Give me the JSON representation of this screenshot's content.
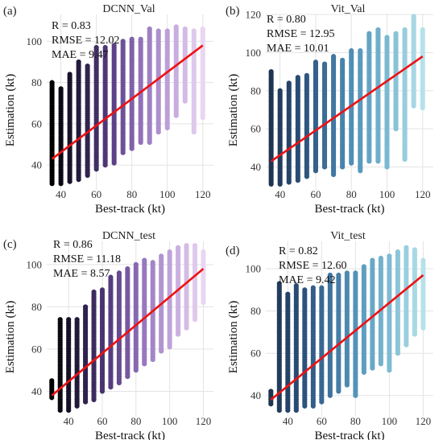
{
  "chart_data": [
    {
      "type": "scatter",
      "panel_label": "(a)",
      "title": "DCNN_Val",
      "xlabel": "Best-track (kt)",
      "ylabel": "Estimation (kt)",
      "xlim": [
        32,
        126
      ],
      "ylim": [
        28,
        113
      ],
      "xticks": [
        40,
        60,
        80,
        100,
        120
      ],
      "yticks": [
        40,
        60,
        80,
        100
      ],
      "grid": true,
      "stats": [
        "R = 0.83",
        "RMSE = 12.02",
        "MAE = 9.47"
      ],
      "colormap": [
        "#000000",
        "#2a1f45",
        "#5a3e85",
        "#9474bd",
        "#c4a8dc",
        "#e9d6f1"
      ],
      "fit_line": {
        "x": [
          35,
          120
        ],
        "y": [
          43,
          98
        ],
        "color": "#ee1111"
      },
      "columns": [
        {
          "x": 35,
          "ymin": 31,
          "ymax": 80
        },
        {
          "x": 40,
          "ymin": 31,
          "ymax": 77
        },
        {
          "x": 45,
          "ymin": 32,
          "ymax": 84
        },
        {
          "x": 50,
          "ymin": 33,
          "ymax": 90
        },
        {
          "x": 55,
          "ymin": 35,
          "ymax": 88
        },
        {
          "x": 60,
          "ymin": 38,
          "ymax": 97
        },
        {
          "x": 65,
          "ymin": 40,
          "ymax": 97
        },
        {
          "x": 70,
          "ymin": 41,
          "ymax": 98
        },
        {
          "x": 75,
          "ymin": 46,
          "ymax": 100
        },
        {
          "x": 80,
          "ymin": 48,
          "ymax": 101
        },
        {
          "x": 85,
          "ymin": 51,
          "ymax": 101
        },
        {
          "x": 90,
          "ymin": 51,
          "ymax": 106
        },
        {
          "x": 95,
          "ymin": 56,
          "ymax": 105
        },
        {
          "x": 100,
          "ymin": 58,
          "ymax": 105
        },
        {
          "x": 105,
          "ymin": 64,
          "ymax": 107
        },
        {
          "x": 110,
          "ymin": 71,
          "ymax": 106
        },
        {
          "x": 115,
          "ymin": 56,
          "ymax": 105
        },
        {
          "x": 120,
          "ymin": 63,
          "ymax": 106
        }
      ]
    },
    {
      "type": "scatter",
      "panel_label": "(b)",
      "title": "Vit_Val",
      "xlabel": "Best-track (kt)",
      "ylabel": "Estimation (kt)",
      "xlim": [
        32,
        126
      ],
      "ylim": [
        28,
        120
      ],
      "xticks": [
        40,
        60,
        80,
        100,
        120
      ],
      "yticks": [
        40,
        60,
        80,
        100,
        120
      ],
      "grid": true,
      "stats": [
        "R = 0.80",
        "RMSE = 12.95",
        "MAE = 10.01"
      ],
      "colormap": [
        "#1e3552",
        "#2a4f78",
        "#3f75a0",
        "#5b9cbf",
        "#82bfd5",
        "#b7e1ea"
      ],
      "fit_line": {
        "x": [
          35,
          120
        ],
        "y": [
          43,
          98
        ],
        "color": "#ee1111"
      },
      "columns": [
        {
          "x": 35,
          "ymin": 31,
          "ymax": 90
        },
        {
          "x": 40,
          "ymin": 31,
          "ymax": 80
        },
        {
          "x": 45,
          "ymin": 32,
          "ymax": 84
        },
        {
          "x": 50,
          "ymin": 33,
          "ymax": 87
        },
        {
          "x": 55,
          "ymin": 35,
          "ymax": 88
        },
        {
          "x": 60,
          "ymin": 38,
          "ymax": 95
        },
        {
          "x": 65,
          "ymin": 40,
          "ymax": 94
        },
        {
          "x": 70,
          "ymin": 36,
          "ymax": 98
        },
        {
          "x": 75,
          "ymin": 40,
          "ymax": 96
        },
        {
          "x": 80,
          "ymin": 42,
          "ymax": 101
        },
        {
          "x": 85,
          "ymin": 38,
          "ymax": 101
        },
        {
          "x": 90,
          "ymin": 43,
          "ymax": 110
        },
        {
          "x": 95,
          "ymin": 43,
          "ymax": 112
        },
        {
          "x": 100,
          "ymin": 40,
          "ymax": 108
        },
        {
          "x": 105,
          "ymin": 60,
          "ymax": 110
        },
        {
          "x": 110,
          "ymin": 44,
          "ymax": 112
        },
        {
          "x": 115,
          "ymin": 72,
          "ymax": 119
        },
        {
          "x": 120,
          "ymin": 71,
          "ymax": 112
        }
      ]
    },
    {
      "type": "scatter",
      "panel_label": "(c)",
      "title": "DCNN_test",
      "xlabel": "Best-track (kt)",
      "ylabel": "Estimation (kt)",
      "xlim": [
        27,
        126
      ],
      "ylim": [
        28,
        111
      ],
      "xticks": [
        40,
        60,
        80,
        100,
        120
      ],
      "yticks": [
        40,
        60,
        80,
        100
      ],
      "grid": true,
      "stats": [
        "R = 0.86",
        "RMSE = 11.18",
        "MAE = 8.57"
      ],
      "colormap": [
        "#000000",
        "#2a1f45",
        "#5a3e85",
        "#9474bd",
        "#c4a8dc",
        "#e9d6f1"
      ],
      "fit_line": {
        "x": [
          30,
          120
        ],
        "y": [
          38,
          98
        ],
        "color": "#ee1111"
      },
      "columns": [
        {
          "x": 30,
          "ymin": 37,
          "ymax": 45
        },
        {
          "x": 35,
          "ymin": 31,
          "ymax": 74
        },
        {
          "x": 40,
          "ymin": 31,
          "ymax": 74
        },
        {
          "x": 45,
          "ymin": 33,
          "ymax": 74
        },
        {
          "x": 50,
          "ymin": 35,
          "ymax": 80
        },
        {
          "x": 55,
          "ymin": 36,
          "ymax": 87
        },
        {
          "x": 60,
          "ymin": 40,
          "ymax": 88
        },
        {
          "x": 65,
          "ymin": 42,
          "ymax": 94
        },
        {
          "x": 70,
          "ymin": 44,
          "ymax": 96
        },
        {
          "x": 75,
          "ymin": 47,
          "ymax": 98
        },
        {
          "x": 80,
          "ymin": 50,
          "ymax": 100
        },
        {
          "x": 85,
          "ymin": 53,
          "ymax": 102
        },
        {
          "x": 90,
          "ymin": 55,
          "ymax": 101
        },
        {
          "x": 95,
          "ymin": 59,
          "ymax": 104
        },
        {
          "x": 100,
          "ymin": 61,
          "ymax": 106
        },
        {
          "x": 105,
          "ymin": 67,
          "ymax": 108
        },
        {
          "x": 110,
          "ymin": 70,
          "ymax": 109
        },
        {
          "x": 115,
          "ymin": 74,
          "ymax": 109
        },
        {
          "x": 120,
          "ymin": 82,
          "ymax": 106
        }
      ]
    },
    {
      "type": "scatter",
      "panel_label": "(d)",
      "title": "Vit_test",
      "xlabel": "Best-track (kt)",
      "ylabel": "Estimation (kt)",
      "xlim": [
        27,
        126
      ],
      "ylim": [
        30,
        113
      ],
      "xticks": [
        40,
        60,
        80,
        100,
        120
      ],
      "yticks": [
        40,
        60,
        80,
        100
      ],
      "grid": true,
      "stats": [
        "R = 0.82",
        "RMSE = 12.60",
        "MAE = 9.42"
      ],
      "colormap": [
        "#1e3552",
        "#2a4f78",
        "#3f75a0",
        "#5b9cbf",
        "#82bfd5",
        "#b7e1ea"
      ],
      "fit_line": {
        "x": [
          30,
          120
        ],
        "y": [
          38,
          97
        ],
        "color": "#ee1111"
      },
      "columns": [
        {
          "x": 30,
          "ymin": 36,
          "ymax": 42
        },
        {
          "x": 35,
          "ymin": 33,
          "ymax": 93
        },
        {
          "x": 40,
          "ymin": 33,
          "ymax": 88
        },
        {
          "x": 45,
          "ymin": 33,
          "ymax": 92
        },
        {
          "x": 50,
          "ymin": 35,
          "ymax": 90
        },
        {
          "x": 55,
          "ymin": 35,
          "ymax": 91
        },
        {
          "x": 60,
          "ymin": 37,
          "ymax": 91
        },
        {
          "x": 65,
          "ymin": 40,
          "ymax": 97
        },
        {
          "x": 70,
          "ymin": 42,
          "ymax": 97
        },
        {
          "x": 75,
          "ymin": 45,
          "ymax": 98
        },
        {
          "x": 80,
          "ymin": 40,
          "ymax": 98
        },
        {
          "x": 85,
          "ymin": 51,
          "ymax": 101
        },
        {
          "x": 90,
          "ymin": 53,
          "ymax": 104
        },
        {
          "x": 95,
          "ymin": 55,
          "ymax": 105
        },
        {
          "x": 100,
          "ymin": 52,
          "ymax": 106
        },
        {
          "x": 105,
          "ymin": 60,
          "ymax": 108
        },
        {
          "x": 110,
          "ymin": 64,
          "ymax": 110
        },
        {
          "x": 115,
          "ymin": 69,
          "ymax": 109
        },
        {
          "x": 120,
          "ymin": 72,
          "ymax": 104
        }
      ]
    }
  ]
}
